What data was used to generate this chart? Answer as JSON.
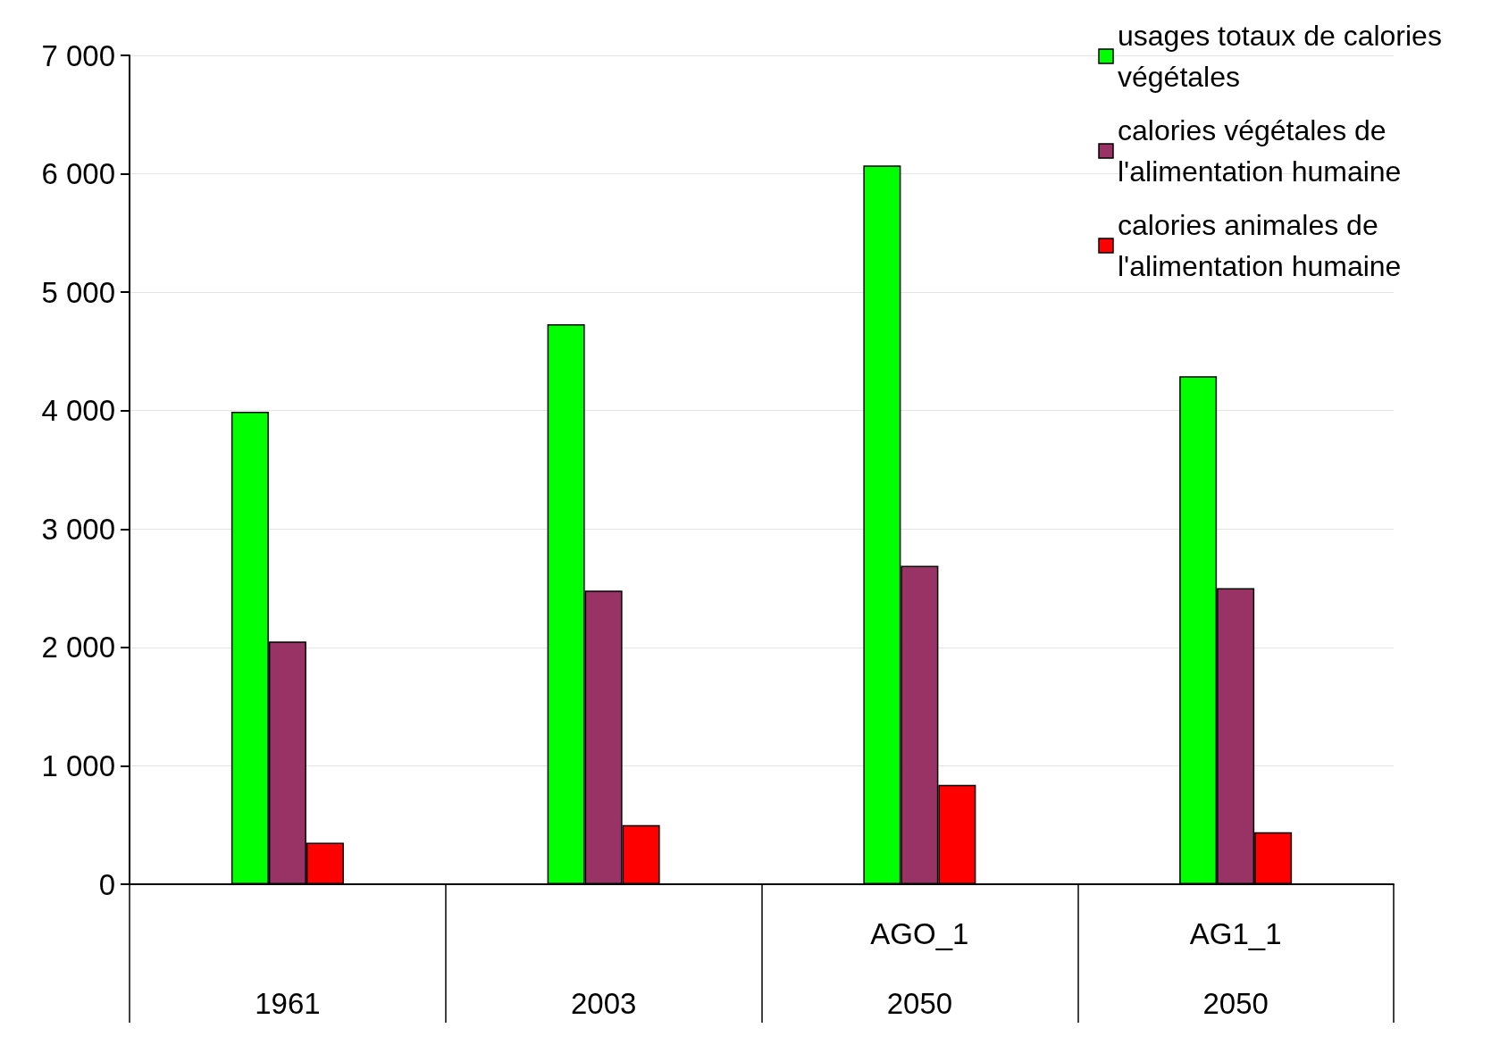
{
  "chart_data": {
    "type": "bar",
    "categories": [
      "\n1961",
      "\n2003",
      "AGO_1\n2050",
      "AG1_1\n2050"
    ],
    "series": [
      {
        "name": "usages totaux de calories végétales",
        "color": "#00ff00",
        "values": [
          3990,
          4730,
          6070,
          4290
        ]
      },
      {
        "name": "calories végétales de l'alimentation humaine",
        "color": "#993366",
        "values": [
          2050,
          2480,
          2690,
          2500
        ]
      },
      {
        "name": "calories animales de l'alimentation humaine",
        "color": "#ff0000",
        "values": [
          350,
          500,
          840,
          440
        ]
      }
    ],
    "ylim": [
      0,
      7000
    ],
    "yticks": [
      0,
      {
        "value": 1000,
        "label": "1 000"
      },
      {
        "value": 2000,
        "label": "2 000"
      },
      {
        "value": 3000,
        "label": "3 000"
      },
      {
        "value": 4000,
        "label": "4 000"
      },
      {
        "value": 5000,
        "label": "5 000"
      },
      {
        "value": 6000,
        "label": "6 000"
      },
      {
        "value": 7000,
        "label": "7 000"
      }
    ],
    "grid": "y",
    "legend": "top right"
  }
}
